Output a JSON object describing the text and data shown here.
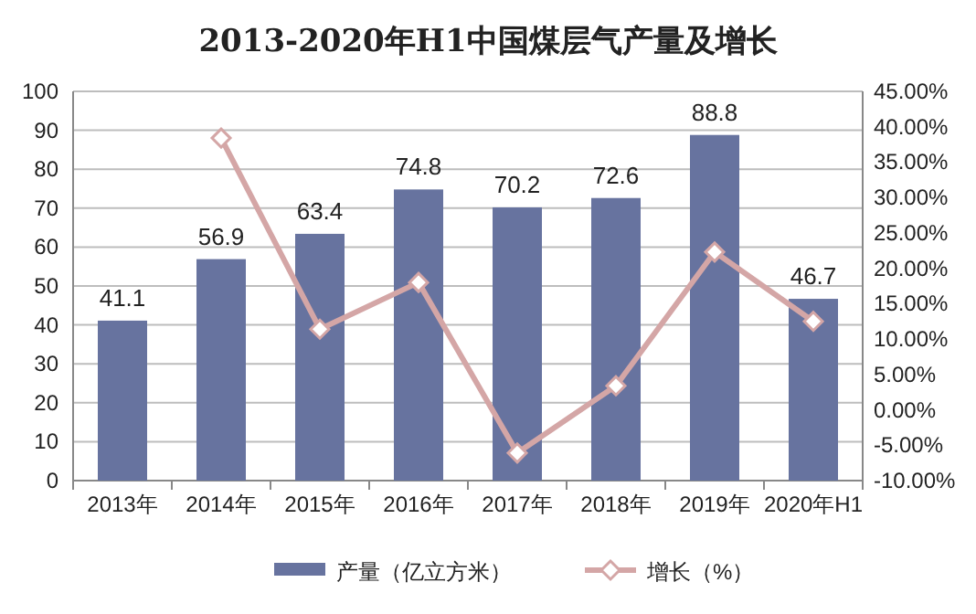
{
  "chart_data": {
    "type": "bar",
    "title": "2013-2020年H1中国煤层气产量及增长",
    "categories": [
      "2013年",
      "2014年",
      "2015年",
      "2016年",
      "2017年",
      "2018年",
      "2019年",
      "2020年H1"
    ],
    "series": [
      {
        "name": "产量（亿立方米）",
        "color": "#67739f",
        "values": [
          41.1,
          56.9,
          63.4,
          74.8,
          70.2,
          72.6,
          88.8,
          46.7
        ],
        "value_labels": [
          "41.1",
          "56.9",
          "63.4",
          "74.8",
          "70.2",
          "72.6",
          "88.8",
          "46.7"
        ]
      },
      {
        "name": "增长（%）",
        "type": "line",
        "axis": "y2",
        "color": "#d4a6a6",
        "marker": "diamond",
        "values": [
          null,
          38.4,
          11.4,
          18.0,
          -6.1,
          3.4,
          22.3,
          12.5
        ]
      }
    ],
    "ylim": [
      0,
      100
    ],
    "yticks": [
      0,
      10,
      20,
      30,
      40,
      50,
      60,
      70,
      80,
      90,
      100
    ],
    "y2lim": [
      -10,
      45
    ],
    "y2ticks": [
      {
        "value": -10,
        "label": "-10.00%"
      },
      {
        "value": -5,
        "label": "-5.00%"
      },
      {
        "value": 0,
        "label": "0.00%"
      },
      {
        "value": 5,
        "label": "5.00%"
      },
      {
        "value": 10,
        "label": "10.00%"
      },
      {
        "value": 15,
        "label": "15.00%"
      },
      {
        "value": 20,
        "label": "20.00%"
      },
      {
        "value": 25,
        "label": "25.00%"
      },
      {
        "value": 30,
        "label": "30.00%"
      },
      {
        "value": 35,
        "label": "35.00%"
      },
      {
        "value": 40,
        "label": "40.00%"
      },
      {
        "value": 45,
        "label": "45.00%"
      }
    ],
    "grid": "y",
    "legend": "bottom"
  }
}
